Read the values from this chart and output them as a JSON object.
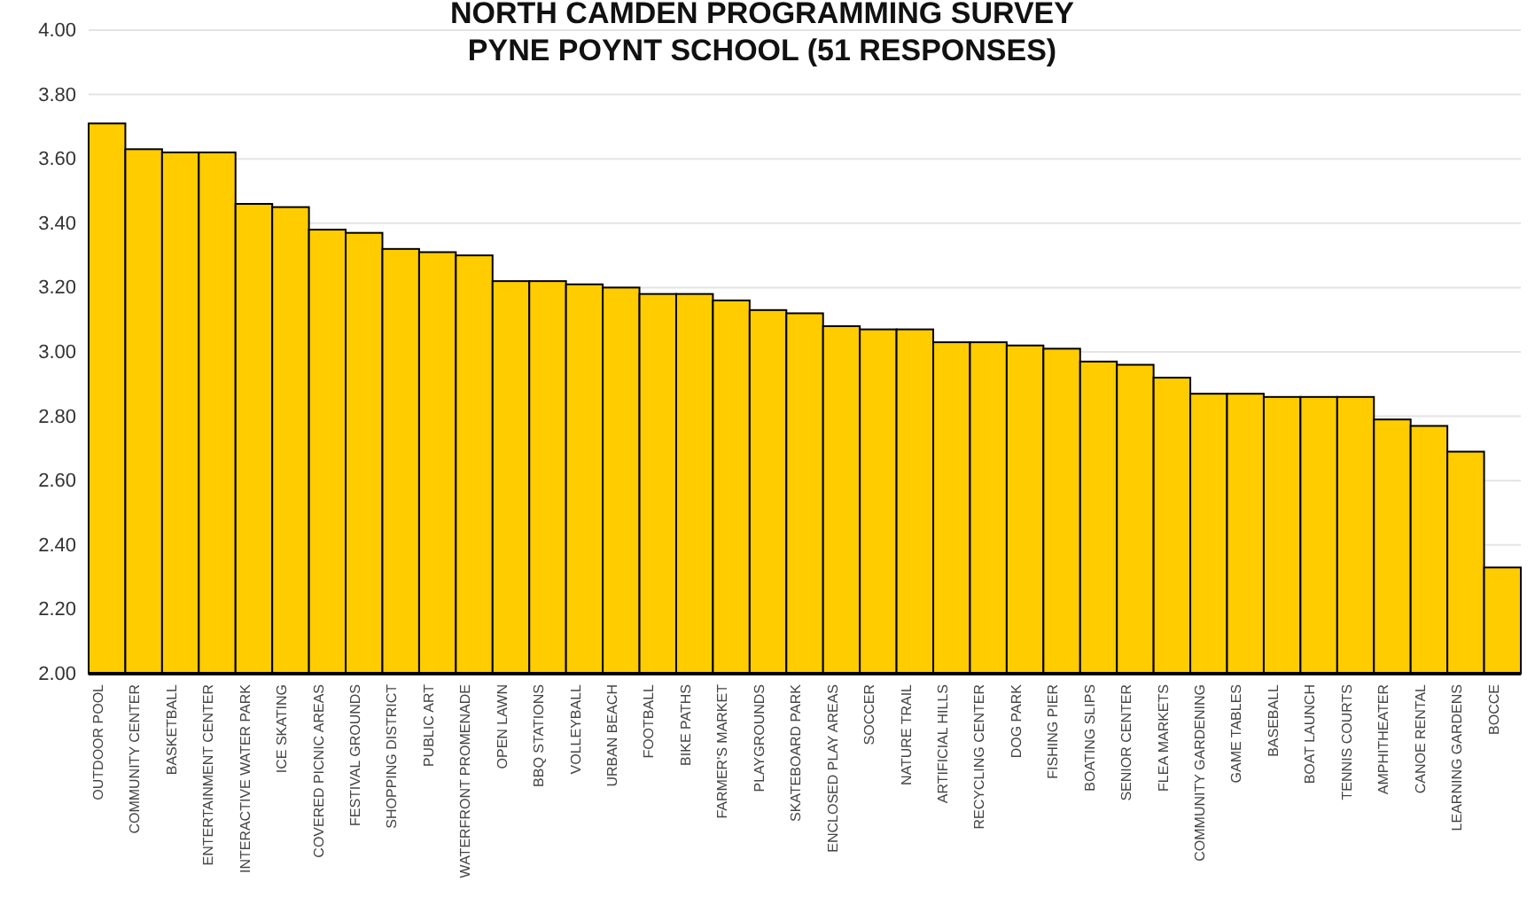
{
  "chart_data": {
    "type": "bar",
    "title": "NORTH CAMDEN PROGRAMMING SURVEY\nPYNE POYNT SCHOOL (51 RESPONSES)",
    "categories": [
      "OUTDOOR POOL",
      "COMMUNITY CENTER",
      "BASKETBALL",
      "ENTERTAINMENT CENTER",
      "INTERACTIVE WATER PARK",
      "ICE SKATING",
      "COVERED PICNIC AREAS",
      "FESTIVAL GROUNDS",
      "SHOPPING DISTRICT",
      "PUBLIC ART",
      "WATERFRONT PROMENADE",
      "OPEN LAWN",
      "BBQ STATIONS",
      "VOLLEYBALL",
      "URBAN BEACH",
      "FOOTBALL",
      "BIKE PATHS",
      "FARMER'S MARKET",
      "PLAYGROUNDS",
      "SKATEBOARD PARK",
      "ENCLOSED PLAY AREAS",
      "SOCCER",
      "NATURE TRAIL",
      "ARTIFICIAL HILLS",
      "RECYCLING CENTER",
      "DOG PARK",
      "FISHING PIER",
      "BOATING SLIPS",
      "SENIOR CENTER",
      "FLEA MARKETS",
      "COMMUNITY GARDENING",
      "GAME TABLES",
      "BASEBALL",
      "BOAT LAUNCH",
      "TENNIS COURTS",
      "AMPHITHEATER",
      "CANOE RENTAL",
      "LEARNING GARDENS",
      "BOCCE"
    ],
    "values": [
      3.71,
      3.63,
      3.62,
      3.62,
      3.46,
      3.45,
      3.38,
      3.37,
      3.32,
      3.31,
      3.3,
      3.22,
      3.22,
      3.21,
      3.2,
      3.18,
      3.18,
      3.16,
      3.13,
      3.12,
      3.08,
      3.07,
      3.07,
      3.03,
      3.03,
      3.02,
      3.01,
      2.97,
      2.96,
      2.92,
      2.87,
      2.87,
      2.86,
      2.86,
      2.86,
      2.79,
      2.77,
      2.69,
      2.33
    ],
    "color": "#ffcc00",
    "ylim": [
      2,
      4
    ],
    "yticks": [
      {
        "value": 2,
        "label": "2.00"
      },
      {
        "value": 2.2,
        "label": "2.20"
      },
      {
        "value": 2.4,
        "label": "2.40"
      },
      {
        "value": 2.6,
        "label": "2.60"
      },
      {
        "value": 2.8,
        "label": "2.80"
      },
      {
        "value": 3,
        "label": "3.00"
      },
      {
        "value": 3.2,
        "label": "3.20"
      },
      {
        "value": 3.4,
        "label": "3.40"
      },
      {
        "value": 3.6,
        "label": "3.60"
      },
      {
        "value": 3.8,
        "label": "3.80"
      },
      {
        "value": 4,
        "label": "4.00"
      }
    ],
    "grid": "y"
  }
}
